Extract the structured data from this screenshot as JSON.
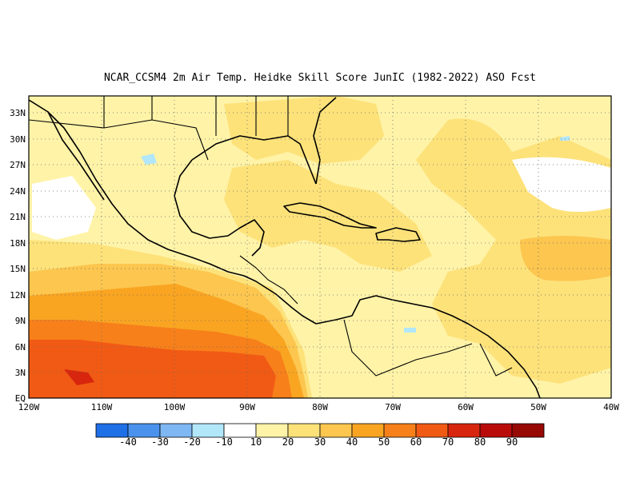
{
  "title": "NCAR_CCSM4  2m Air Temp. Heidke Skill Score JunIC (1982-2022) ASO Fcst",
  "map": {
    "lon_range": [
      -120,
      -40
    ],
    "lat_range": [
      0,
      35
    ],
    "x_ticks": [
      "120W",
      "110W",
      "100W",
      "90W",
      "80W",
      "70W",
      "60W",
      "50W",
      "40W"
    ],
    "y_ticks": [
      "EQ",
      "3N",
      "6N",
      "9N",
      "12N",
      "15N",
      "18N",
      "21N",
      "24N",
      "27N",
      "30N",
      "33N"
    ],
    "grid": "dotted",
    "field": "Heidke Skill Score"
  },
  "colorbar": {
    "labels": [
      "-40",
      "-30",
      "-20",
      "-10",
      "10",
      "20",
      "30",
      "40",
      "50",
      "60",
      "70",
      "80",
      "90"
    ],
    "colors": [
      "#1f6fe6",
      "#4a92ec",
      "#7eb7f3",
      "#b2e7fa",
      "#ffffff",
      "#fff3a8",
      "#fde27a",
      "#fcc64f",
      "#f9a522",
      "#f7801a",
      "#f15a15",
      "#d7260d",
      "#b90c0a",
      "#960905"
    ]
  }
}
